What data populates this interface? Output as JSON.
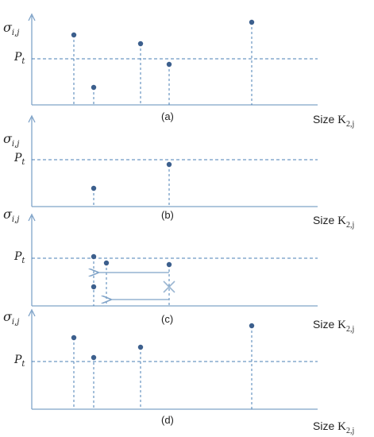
{
  "y_label": {
    "symbol": "σ",
    "subscript": "i,j"
  },
  "threshold_label": {
    "symbol": "P",
    "subscript": "t"
  },
  "x_label": {
    "prefix": "Size ",
    "symbol": "K",
    "subscript": "2,j"
  },
  "colors": {
    "axis": "#7fa3c8",
    "guide": "#4a7fb5",
    "point": "#3c5f8d",
    "cross": "#9bb6d2"
  },
  "panels": [
    {
      "tag": "(a)"
    },
    {
      "tag": "(b)"
    },
    {
      "tag": "(c)"
    },
    {
      "tag": "(d)"
    }
  ]
}
